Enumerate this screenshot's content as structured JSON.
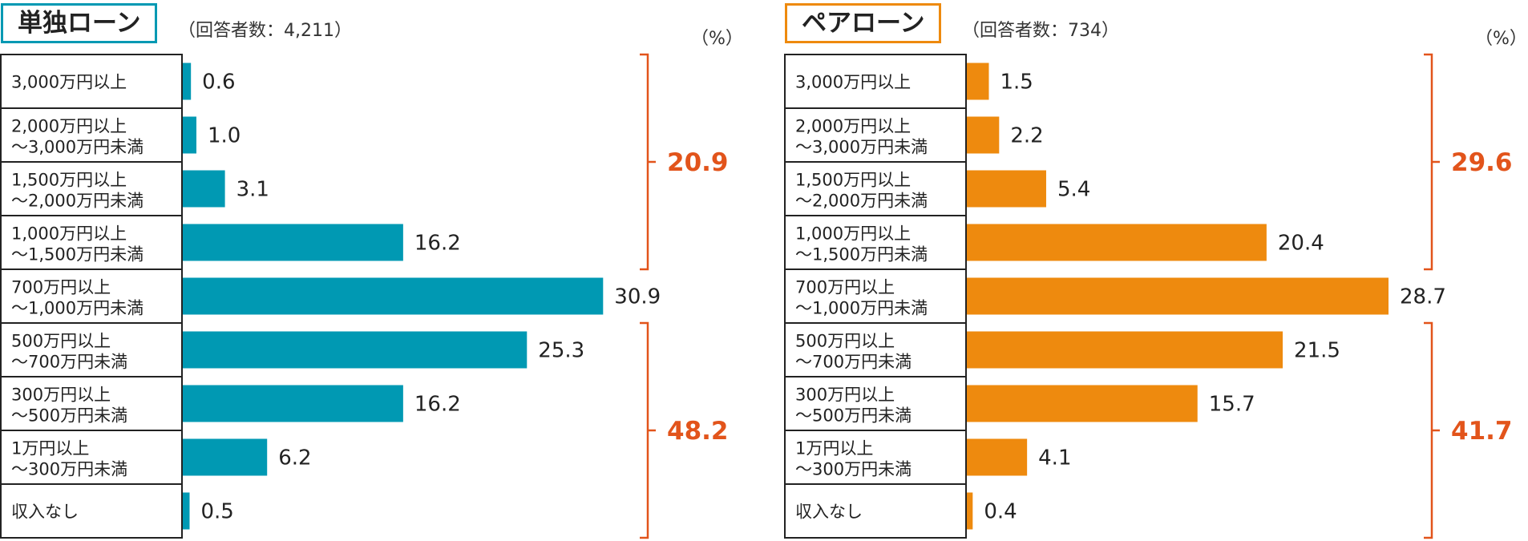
{
  "chart_data": [
    {
      "type": "bar",
      "orientation": "horizontal",
      "title": "単独ローン",
      "respondents": "（回答者数：4,211）",
      "unit": "（%）",
      "categories": [
        [
          "3,000万円以上"
        ],
        [
          "2,000万円以上",
          "～3,000万円未満"
        ],
        [
          "1,500万円以上",
          "～2,000万円未満"
        ],
        [
          "1,000万円以上",
          "～1,500万円未満"
        ],
        [
          "700万円以上",
          "～1,000万円未満"
        ],
        [
          "500万円以上",
          "～700万円未満"
        ],
        [
          "300万円以上",
          "～500万円未満"
        ],
        [
          "1万円以上",
          "～300万円未満"
        ],
        [
          "収入なし"
        ]
      ],
      "values": [
        0.6,
        1.0,
        3.1,
        16.2,
        30.9,
        25.3,
        16.2,
        6.2,
        0.5
      ],
      "value_labels": [
        "0.6",
        "1.0",
        "3.1",
        "16.2",
        "30.9",
        "25.3",
        "16.2",
        "6.2",
        "0.5"
      ],
      "xlim": [
        0,
        31
      ],
      "color": "#0099b3",
      "groups": [
        {
          "label": "20.9",
          "from": 0,
          "to": 3,
          "color": "#e2541b"
        },
        {
          "label": "48.2",
          "from": 5,
          "to": 8,
          "color": "#e2541b"
        }
      ]
    },
    {
      "type": "bar",
      "orientation": "horizontal",
      "title": "ペアローン",
      "respondents": "（回答者数：734）",
      "unit": "（%）",
      "categories": [
        [
          "3,000万円以上"
        ],
        [
          "2,000万円以上",
          "～3,000万円未満"
        ],
        [
          "1,500万円以上",
          "～2,000万円未満"
        ],
        [
          "1,000万円以上",
          "～1,500万円未満"
        ],
        [
          "700万円以上",
          "～1,000万円未満"
        ],
        [
          "500万円以上",
          "～700万円未満"
        ],
        [
          "300万円以上",
          "～500万円未満"
        ],
        [
          "1万円以上",
          "～300万円未満"
        ],
        [
          "収入なし"
        ]
      ],
      "values": [
        1.5,
        2.2,
        5.4,
        20.4,
        28.7,
        21.5,
        15.7,
        4.1,
        0.4
      ],
      "value_labels": [
        "1.5",
        "2.2",
        "5.4",
        "20.4",
        "28.7",
        "21.5",
        "15.7",
        "4.1",
        "0.4"
      ],
      "xlim": [
        0,
        28.7
      ],
      "color": "#ee8a0e",
      "groups": [
        {
          "label": "29.6",
          "from": 0,
          "to": 3,
          "color": "#e2541b"
        },
        {
          "label": "41.7",
          "from": 5,
          "to": 8,
          "color": "#e2541b"
        }
      ]
    }
  ],
  "colors": {
    "left_accent": "#0099b3",
    "right_accent": "#ee8a0e",
    "bracket": "#e2541b"
  }
}
